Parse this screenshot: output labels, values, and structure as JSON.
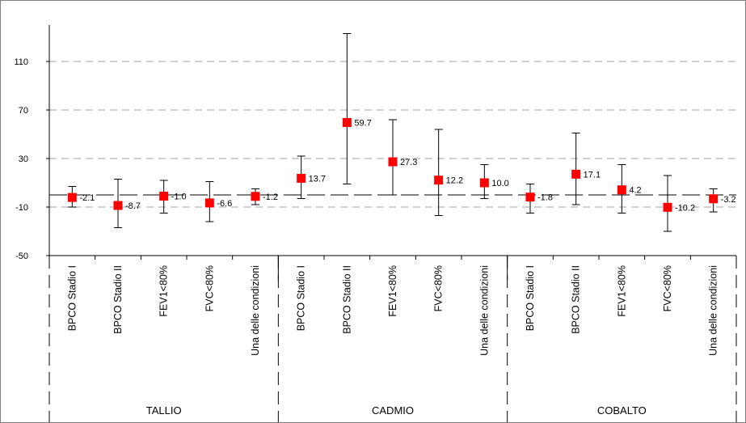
{
  "chart_data": {
    "type": "scatter",
    "variant": "point-with-error-bars",
    "title": "",
    "xlabel": "",
    "ylabel": "",
    "ylim": [
      -50,
      140
    ],
    "y_ticks": [
      "-50",
      "-10",
      "30",
      "70",
      "110"
    ],
    "y_tick_values": [
      -50,
      -10,
      30,
      70,
      110
    ],
    "reference_line": 0,
    "gridlines": "horizontal, dashed",
    "marker_color": "#ff0000",
    "groups": [
      {
        "name": "TALLIO",
        "categories": [
          "BPCO Stadio I",
          "BPCO Stadio II",
          "FEV1<80%",
          "FVC<80%",
          "Una delle condizioni"
        ],
        "values": [
          -2.1,
          -8.7,
          -1.0,
          -6.6,
          -1.2
        ],
        "value_labels": [
          "-2.1",
          "-8.7",
          "-1.0",
          "-6.6",
          "-1.2"
        ],
        "ci_low": [
          -10,
          -27,
          -15,
          -22,
          -8
        ],
        "ci_high": [
          7,
          13,
          12,
          11,
          5
        ]
      },
      {
        "name": "CADMIO",
        "categories": [
          "BPCO Stadio I",
          "BPCO Stadio II",
          "FEV1<80%",
          "FVC<80%",
          "Una delle condizioni"
        ],
        "values": [
          13.7,
          59.7,
          27.3,
          12.2,
          10.0
        ],
        "value_labels": [
          "13.7",
          "59.7",
          "27.3",
          "12.2",
          "10.0"
        ],
        "ci_low": [
          -3,
          9,
          0,
          -17,
          -3
        ],
        "ci_high": [
          32,
          133,
          62,
          54,
          25
        ]
      },
      {
        "name": "COBALTO",
        "categories": [
          "BPCO Stadio I",
          "BPCO Stadio II",
          "FEV1<80%",
          "FVC<80%",
          "Una delle condizioni"
        ],
        "values": [
          -1.8,
          17.1,
          4.2,
          -10.2,
          -3.2
        ],
        "value_labels": [
          "-1.8",
          "17.1",
          "4.2",
          "-10.2",
          "-3.2"
        ],
        "ci_low": [
          -15,
          -8,
          -15,
          -30,
          -14
        ],
        "ci_high": [
          9,
          51,
          25,
          16,
          5
        ]
      }
    ]
  }
}
